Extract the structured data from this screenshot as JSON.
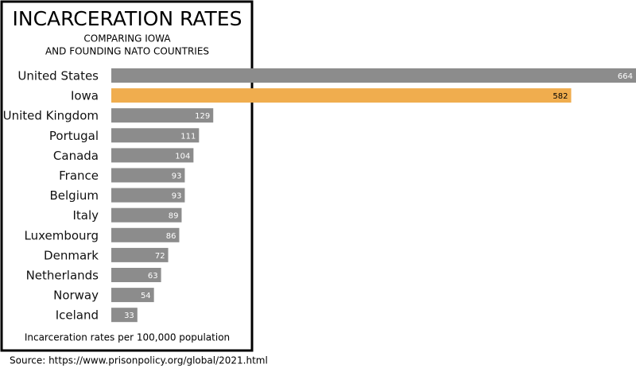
{
  "chart_data": {
    "type": "bar",
    "orientation": "horizontal",
    "title": "INCARCERATION RATES",
    "subtitle": [
      "COMPARING IOWA",
      "AND FOUNDING NATO COUNTRIES"
    ],
    "categories": [
      "United States",
      "Iowa",
      "United Kingdom",
      "Portugal",
      "Canada",
      "France",
      "Belgium",
      "Italy",
      "Luxembourg",
      "Denmark",
      "Netherlands",
      "Norway",
      "Iceland"
    ],
    "values": [
      664,
      582,
      129,
      111,
      104,
      93,
      93,
      89,
      86,
      72,
      63,
      54,
      33
    ],
    "colors": [
      "#8c8c8c",
      "#f0ad4e",
      "#8c8c8c",
      "#8c8c8c",
      "#8c8c8c",
      "#8c8c8c",
      "#8c8c8c",
      "#8c8c8c",
      "#8c8c8c",
      "#8c8c8c",
      "#8c8c8c",
      "#8c8c8c",
      "#8c8c8c"
    ],
    "note": "Incarceration rates per 100,000 population",
    "source": "Source: https://www.prisonpolicy.org/global/2021.html"
  }
}
